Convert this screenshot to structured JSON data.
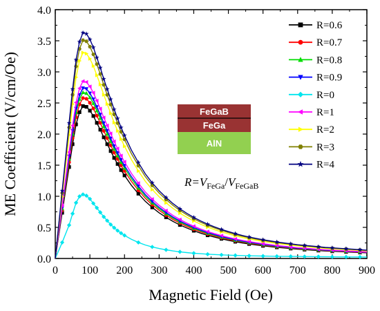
{
  "chart_data": {
    "type": "line",
    "xlabel": "Magnetic Field (Oe)",
    "ylabel": "ME Coefficient (V/cm/Oe)",
    "xlim": [
      0,
      900
    ],
    "ylim": [
      0,
      4.0
    ],
    "xticks": [
      0,
      100,
      200,
      300,
      400,
      500,
      600,
      700,
      800,
      900
    ],
    "yticks": [
      0.0,
      0.5,
      1.0,
      1.5,
      2.0,
      2.5,
      3.0,
      3.5,
      4.0
    ],
    "xtick_labels": [
      "0",
      "100",
      "200",
      "300",
      "400",
      "500",
      "600",
      "700",
      "800",
      "900"
    ],
    "ytick_labels": [
      "0.0",
      "0.5",
      "1.0",
      "1.5",
      "2.0",
      "2.5",
      "3.0",
      "3.5",
      "4.0"
    ],
    "grid": false,
    "legend_position": "top-right",
    "series": [
      {
        "name": "R=0.6",
        "color": "#000000",
        "marker": "square",
        "peak": 2.45
      },
      {
        "name": "R=0.7",
        "color": "#ff0000",
        "marker": "circle",
        "peak": 2.58
      },
      {
        "name": "R=0.8",
        "color": "#00dd00",
        "marker": "triangle-up",
        "peak": 2.67
      },
      {
        "name": "R=0.9",
        "color": "#0000ff",
        "marker": "triangle-down",
        "peak": 2.74
      },
      {
        "name": "R=0",
        "color": "#00e5ee",
        "marker": "diamond",
        "peak": 1.03
      },
      {
        "name": "R=1",
        "color": "#ff00ff",
        "marker": "triangle-left",
        "peak": 2.85
      },
      {
        "name": "R=2",
        "color": "#ffff00",
        "marker": "triangle-right",
        "peak": 3.31
      },
      {
        "name": "R=3",
        "color": "#808000",
        "marker": "hexagon",
        "peak": 3.51
      },
      {
        "name": "R=4",
        "color": "#000080",
        "marker": "star",
        "peak": 3.63
      }
    ],
    "curve_shape": {
      "x": [
        0,
        20,
        40,
        50,
        60,
        70,
        80,
        90,
        100,
        110,
        120,
        130,
        140,
        150,
        160,
        170,
        180,
        190,
        200,
        220,
        240,
        260,
        280,
        300,
        320,
        340,
        360,
        380,
        400,
        420,
        440,
        460,
        480,
        500,
        520,
        540,
        560,
        580,
        600,
        620,
        640,
        660,
        680,
        700,
        720,
        740,
        760,
        780,
        800,
        820,
        840,
        860,
        880,
        900
      ],
      "y_normalized": [
        0,
        0.3,
        0.6,
        0.75,
        0.88,
        0.96,
        1.0,
        0.995,
        0.97,
        0.935,
        0.89,
        0.845,
        0.795,
        0.75,
        0.705,
        0.66,
        0.62,
        0.58,
        0.545,
        0.48,
        0.425,
        0.375,
        0.335,
        0.3,
        0.27,
        0.243,
        0.22,
        0.2,
        0.182,
        0.166,
        0.152,
        0.14,
        0.129,
        0.119,
        0.11,
        0.102,
        0.095,
        0.089,
        0.083,
        0.078,
        0.073,
        0.069,
        0.065,
        0.061,
        0.058,
        0.055,
        0.052,
        0.049,
        0.047,
        0.045,
        0.043,
        0.041,
        0.039,
        0.037
      ]
    },
    "r0_curve": {
      "x": [
        0,
        20,
        40,
        50,
        60,
        70,
        80,
        90,
        100,
        110,
        120,
        130,
        140,
        150,
        160,
        170,
        180,
        190,
        200,
        220,
        240,
        260,
        280,
        300,
        320,
        340,
        360,
        380,
        400,
        420,
        440,
        460,
        480,
        500,
        520,
        540,
        560,
        580,
        600,
        620,
        640,
        660,
        680,
        700,
        720,
        740,
        760,
        780,
        800,
        820,
        840,
        860,
        880,
        900
      ],
      "y_normalized": [
        0,
        0.25,
        0.52,
        0.7,
        0.87,
        0.97,
        1.0,
        0.98,
        0.93,
        0.86,
        0.79,
        0.72,
        0.65,
        0.59,
        0.53,
        0.48,
        0.435,
        0.395,
        0.36,
        0.3,
        0.25,
        0.21,
        0.18,
        0.155,
        0.135,
        0.118,
        0.104,
        0.092,
        0.082,
        0.074,
        0.067,
        0.061,
        0.056,
        0.052,
        0.048,
        0.045,
        0.042,
        0.04,
        0.038,
        0.036,
        0.034,
        0.033,
        0.032,
        0.031,
        0.03,
        0.029,
        0.028,
        0.027,
        0.026,
        0.025,
        0.025,
        0.024,
        0.024,
        0.023
      ]
    }
  },
  "inset": {
    "layers": [
      {
        "label": "FeGaB",
        "color": "#993333"
      },
      {
        "label": "FeGa",
        "color": "#993333"
      },
      {
        "label": "AlN",
        "color": "#92d050"
      }
    ],
    "formula": {
      "lhs": "R=",
      "v1": "V",
      "sub1": "FeGa",
      "slash": "/",
      "v2": "V",
      "sub2": "FeGaB"
    }
  }
}
